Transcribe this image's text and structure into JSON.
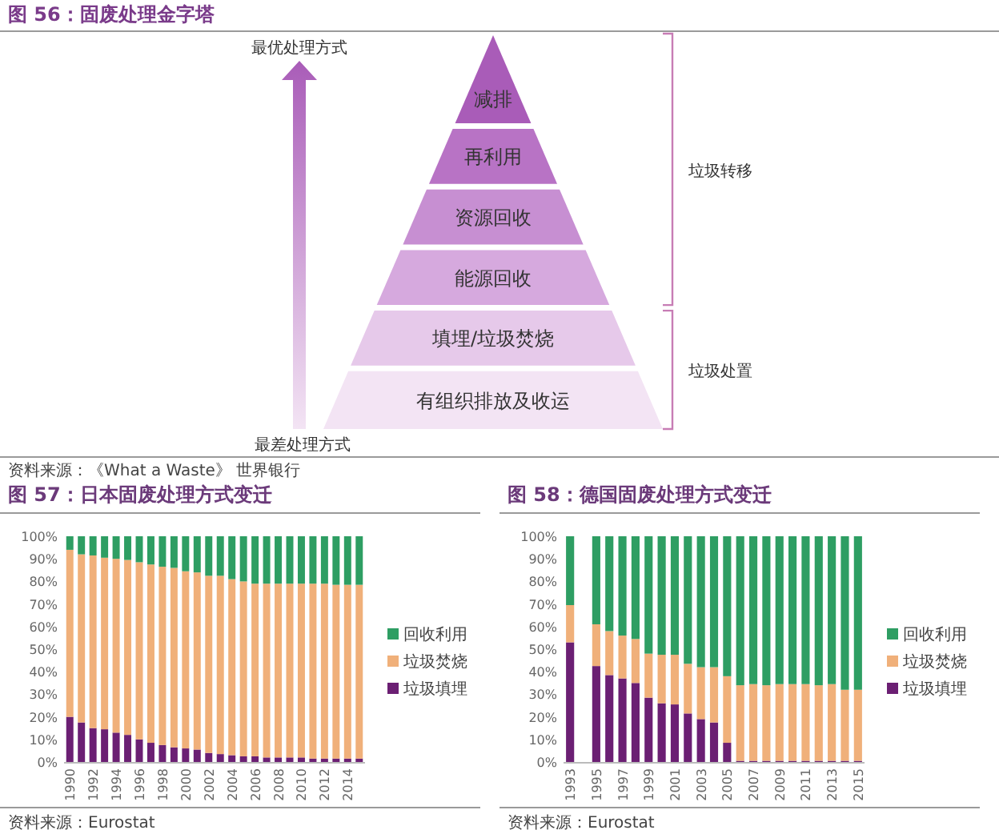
{
  "chart_data": [
    {
      "type": "other",
      "title": "图 56：固废处理金字塔",
      "categories": [
        "减排",
        "再利用",
        "资源回收",
        "能源回收",
        "填埋/垃圾焚烧",
        "有组织排放及收运"
      ],
      "colors": [
        "#a95cb8",
        "#b873c5",
        "#c78fd2",
        "#d6a9de",
        "#e6c9ea",
        "#f3e4f4"
      ],
      "annotations": [
        "最优处理方式",
        "最差处理方式",
        "垃圾转移",
        "垃圾处置",
        "资料来源：《What a Waste》 世界银行"
      ]
    },
    {
      "type": "bar",
      "title": "图 57：日本固废处理方式变迁",
      "stacked": true,
      "categories": [
        "1990",
        null,
        "1992",
        null,
        "1994",
        null,
        "1996",
        null,
        "1998",
        null,
        "2000",
        null,
        "2002",
        null,
        "2004",
        null,
        "2006",
        null,
        "2008",
        null,
        "2010",
        null,
        "2012",
        null,
        "2014",
        null
      ],
      "series": [
        {
          "name": "垃圾填埋",
          "color": "#6b1f73",
          "values": [
            20,
            17.5,
            15,
            14.5,
            13,
            12,
            10,
            8.5,
            7.5,
            6.5,
            6,
            5.5,
            4,
            3.5,
            3,
            2.5,
            2.5,
            2,
            2,
            2,
            2,
            1.5,
            1.5,
            1.5,
            1.5,
            1.5
          ]
        },
        {
          "name": "垃圾焚烧",
          "color": "#f0b07a",
          "values": [
            74,
            74.5,
            76.5,
            76,
            77,
            77.5,
            78.5,
            79,
            79,
            79.5,
            78.5,
            78.5,
            78.5,
            79,
            78,
            77.5,
            76.5,
            77,
            77,
            77,
            77,
            77.5,
            77.5,
            77,
            77,
            77
          ]
        },
        {
          "name": "回收利用",
          "color": "#2e9e63",
          "values": [
            6,
            8,
            8.5,
            9.5,
            10,
            10.5,
            11.5,
            12.5,
            13.5,
            14,
            15.5,
            16,
            17.5,
            17.5,
            19,
            20,
            21,
            21,
            21,
            21,
            21,
            21,
            21,
            21.5,
            21.5,
            21.5
          ]
        }
      ],
      "ylim": [
        0,
        100
      ],
      "yticks": [
        {
          "value": 0,
          "label": "0%"
        },
        {
          "value": 10,
          "label": "10%"
        },
        {
          "value": 20,
          "label": "20%"
        },
        {
          "value": 30,
          "label": "30%"
        },
        {
          "value": 40,
          "label": "40%"
        },
        {
          "value": 50,
          "label": "50%"
        },
        {
          "value": 60,
          "label": "60%"
        },
        {
          "value": 70,
          "label": "70%"
        },
        {
          "value": 80,
          "label": "80%"
        },
        {
          "value": 90,
          "label": "90%"
        },
        {
          "value": 100,
          "label": "100%"
        }
      ],
      "legend": "right",
      "annotations": [
        "资料来源：Eurostat"
      ]
    },
    {
      "type": "bar",
      "title": "图 58：德国固废处理方式变迁",
      "stacked": true,
      "categories": [
        "1993",
        null,
        "1995",
        null,
        "1997",
        null,
        "1999",
        null,
        "2001",
        null,
        "2003",
        null,
        "2005",
        null,
        "2007",
        null,
        "2009",
        null,
        "2011",
        null,
        "2013",
        null,
        "2015"
      ],
      "series": [
        {
          "name": "垃圾填埋",
          "color": "#6b1f73",
          "values": [
            53,
            null,
            42.5,
            38.5,
            37,
            35,
            28.5,
            26,
            25.5,
            21.5,
            19,
            17.5,
            8.5,
            0.5,
            0.5,
            0.5,
            0.5,
            0.5,
            0.5,
            0.5,
            0.5,
            0.5,
            0.5
          ]
        },
        {
          "name": "垃圾焚烧",
          "color": "#f0b07a",
          "values": [
            16.5,
            null,
            18.5,
            19.5,
            19,
            19.5,
            19.5,
            21.5,
            22,
            22,
            23,
            24.5,
            29.5,
            33.5,
            34,
            33.5,
            34,
            34,
            34,
            33.5,
            34,
            31.5,
            31.5
          ]
        },
        {
          "name": "回收利用",
          "color": "#2e9e63",
          "values": [
            30.5,
            null,
            39,
            42,
            44,
            45.5,
            52,
            52.5,
            52.5,
            56.5,
            58,
            58,
            62,
            66,
            65.5,
            66,
            65.5,
            65.5,
            65.5,
            66,
            65.5,
            68,
            68
          ]
        }
      ],
      "ylim": [
        0,
        100
      ],
      "yticks": [
        {
          "value": 0,
          "label": "0%"
        },
        {
          "value": 10,
          "label": "10%"
        },
        {
          "value": 20,
          "label": "20%"
        },
        {
          "value": 30,
          "label": "30%"
        },
        {
          "value": 40,
          "label": "40%"
        },
        {
          "value": 50,
          "label": "50%"
        },
        {
          "value": 60,
          "label": "60%"
        },
        {
          "value": 70,
          "label": "70%"
        },
        {
          "value": 80,
          "label": "80%"
        },
        {
          "value": 90,
          "label": "90%"
        },
        {
          "value": 100,
          "label": "100%"
        }
      ],
      "legend": "right",
      "annotations": [
        "资料来源：Eurostat"
      ]
    }
  ]
}
